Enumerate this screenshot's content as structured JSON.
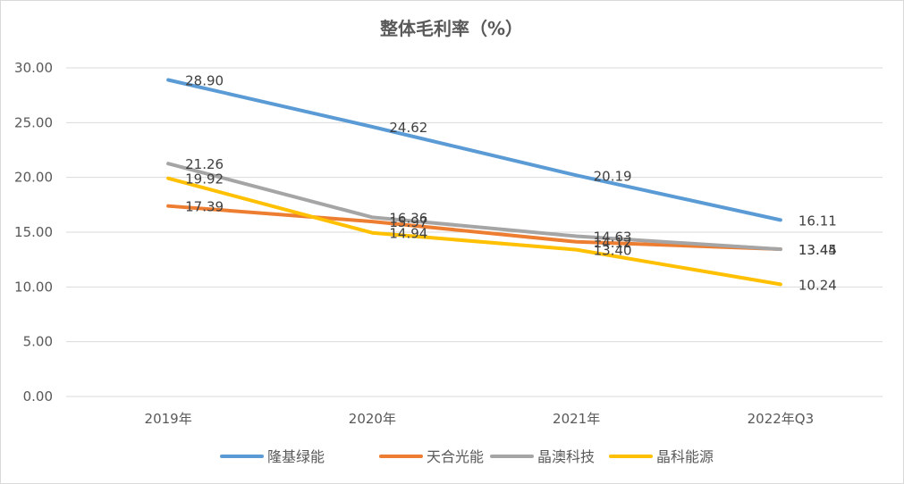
{
  "chart_data": {
    "type": "line",
    "title": "整体毛利率（%）",
    "xlabel": "",
    "ylabel": "",
    "categories": [
      "2019年",
      "2020年",
      "2021年",
      "2022年Q3"
    ],
    "ylim": [
      0,
      30
    ],
    "yticks": [
      "0.00",
      "5.00",
      "10.00",
      "15.00",
      "20.00",
      "25.00",
      "30.00"
    ],
    "grid": true,
    "legend_position": "bottom",
    "series": [
      {
        "name": "隆基绿能",
        "color": "#5b9bd5",
        "values": [
          28.9,
          24.62,
          20.19,
          16.11
        ],
        "labels": [
          "28.90",
          "24.62",
          "20.19",
          "16.11"
        ]
      },
      {
        "name": "天合光能",
        "color": "#ed7d31",
        "values": [
          17.39,
          15.97,
          14.12,
          13.45
        ],
        "labels": [
          "17.39",
          "15.97",
          "14.12",
          "13.45"
        ]
      },
      {
        "name": "晶澳科技",
        "color": "#a5a5a5",
        "values": [
          21.26,
          16.36,
          14.63,
          13.44
        ],
        "labels": [
          "21.26",
          "16.36",
          "14.63",
          "13.44"
        ]
      },
      {
        "name": "晶科能源",
        "color": "#ffc000",
        "values": [
          19.92,
          14.94,
          13.4,
          10.24
        ],
        "labels": [
          "19.92",
          "14.94",
          "13.40",
          "10.24"
        ]
      }
    ]
  }
}
